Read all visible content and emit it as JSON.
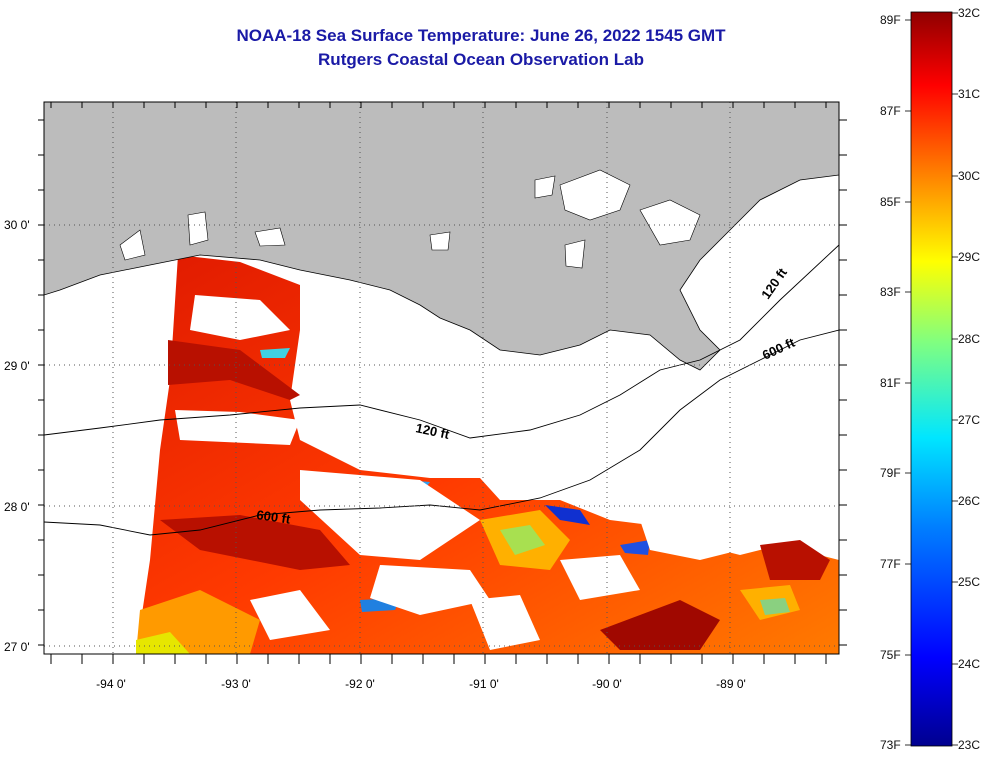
{
  "title": "NOAA-18 Sea Surface Temperature:  June 26, 2022 1545 GMT",
  "subtitle": "Rutgers Coastal Ocean Observation Lab",
  "map": {
    "lon_ticks": [
      "-94 0'",
      "-93 0'",
      "-92 0'",
      "-91 0'",
      "-90 0'",
      "-89 0'"
    ],
    "lat_ticks": [
      "30 0'",
      "29 0'",
      "28 0'",
      "27 0'"
    ],
    "contour_labels": [
      "120 ft",
      "120 ft",
      "600 ft",
      "600 ft"
    ],
    "land_color": "#bcbcbc",
    "grid_style": "dotted",
    "lon_range": [
      -94.5,
      -88.0
    ],
    "lat_range": [
      26.9,
      30.85
    ]
  },
  "colorbar": {
    "fahrenheit_labels": [
      "89F",
      "87F",
      "85F",
      "83F",
      "81F",
      "79F",
      "77F",
      "75F",
      "73F"
    ],
    "celsius_labels": [
      "32C",
      "31C",
      "30C",
      "29C",
      "28C",
      "27C",
      "26C",
      "25C",
      "24C",
      "23C"
    ],
    "colors": [
      "#00008f",
      "#0000ff",
      "#0080ff",
      "#00ffff",
      "#80ff80",
      "#ffff00",
      "#ff8000",
      "#ff0000",
      "#8f0000"
    ]
  }
}
